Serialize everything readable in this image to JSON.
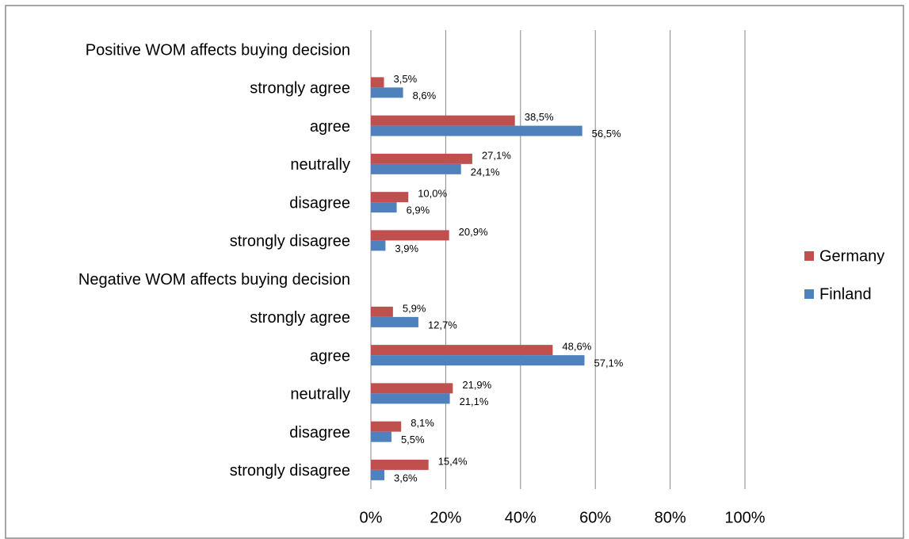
{
  "chart_data": {
    "type": "hbar",
    "categories": [
      "Positive WOM affects buying decision",
      "strongly agree",
      "agree",
      "neutrally",
      "disagree",
      "strongly disagree",
      "Negative WOM affects buying decision",
      "strongly agree",
      "agree",
      "neutrally",
      "disagree",
      "strongly disagree"
    ],
    "series": [
      {
        "name": "Germany",
        "color": "#c0504d",
        "values": [
          null,
          3.5,
          38.5,
          27.1,
          10.0,
          20.9,
          null,
          5.9,
          48.6,
          21.9,
          8.1,
          15.4
        ],
        "value_labels": [
          null,
          "3,5%",
          "38,5%",
          "27,1%",
          "10,0%",
          "20,9%",
          null,
          "5,9%",
          "48,6%",
          "21,9%",
          "8,1%",
          "15,4%"
        ]
      },
      {
        "name": "Finland",
        "color": "#4f81bd",
        "values": [
          null,
          8.6,
          56.5,
          24.1,
          6.9,
          3.9,
          null,
          12.7,
          57.1,
          21.1,
          5.5,
          3.6
        ],
        "value_labels": [
          null,
          "8,6%",
          "56,5%",
          "24,1%",
          "6,9%",
          "3,9%",
          null,
          "12,7%",
          "57,1%",
          "21,1%",
          "5,5%",
          "3,6%"
        ]
      }
    ],
    "xlim": [
      0,
      100
    ],
    "xticks": [
      {
        "value": 0,
        "label": "0%"
      },
      {
        "value": 20,
        "label": "20%"
      },
      {
        "value": 40,
        "label": "40%"
      },
      {
        "value": 60,
        "label": "60%"
      },
      {
        "value": 80,
        "label": "80%"
      },
      {
        "value": 100,
        "label": "100%"
      }
    ],
    "grid": true,
    "legend": "right"
  }
}
